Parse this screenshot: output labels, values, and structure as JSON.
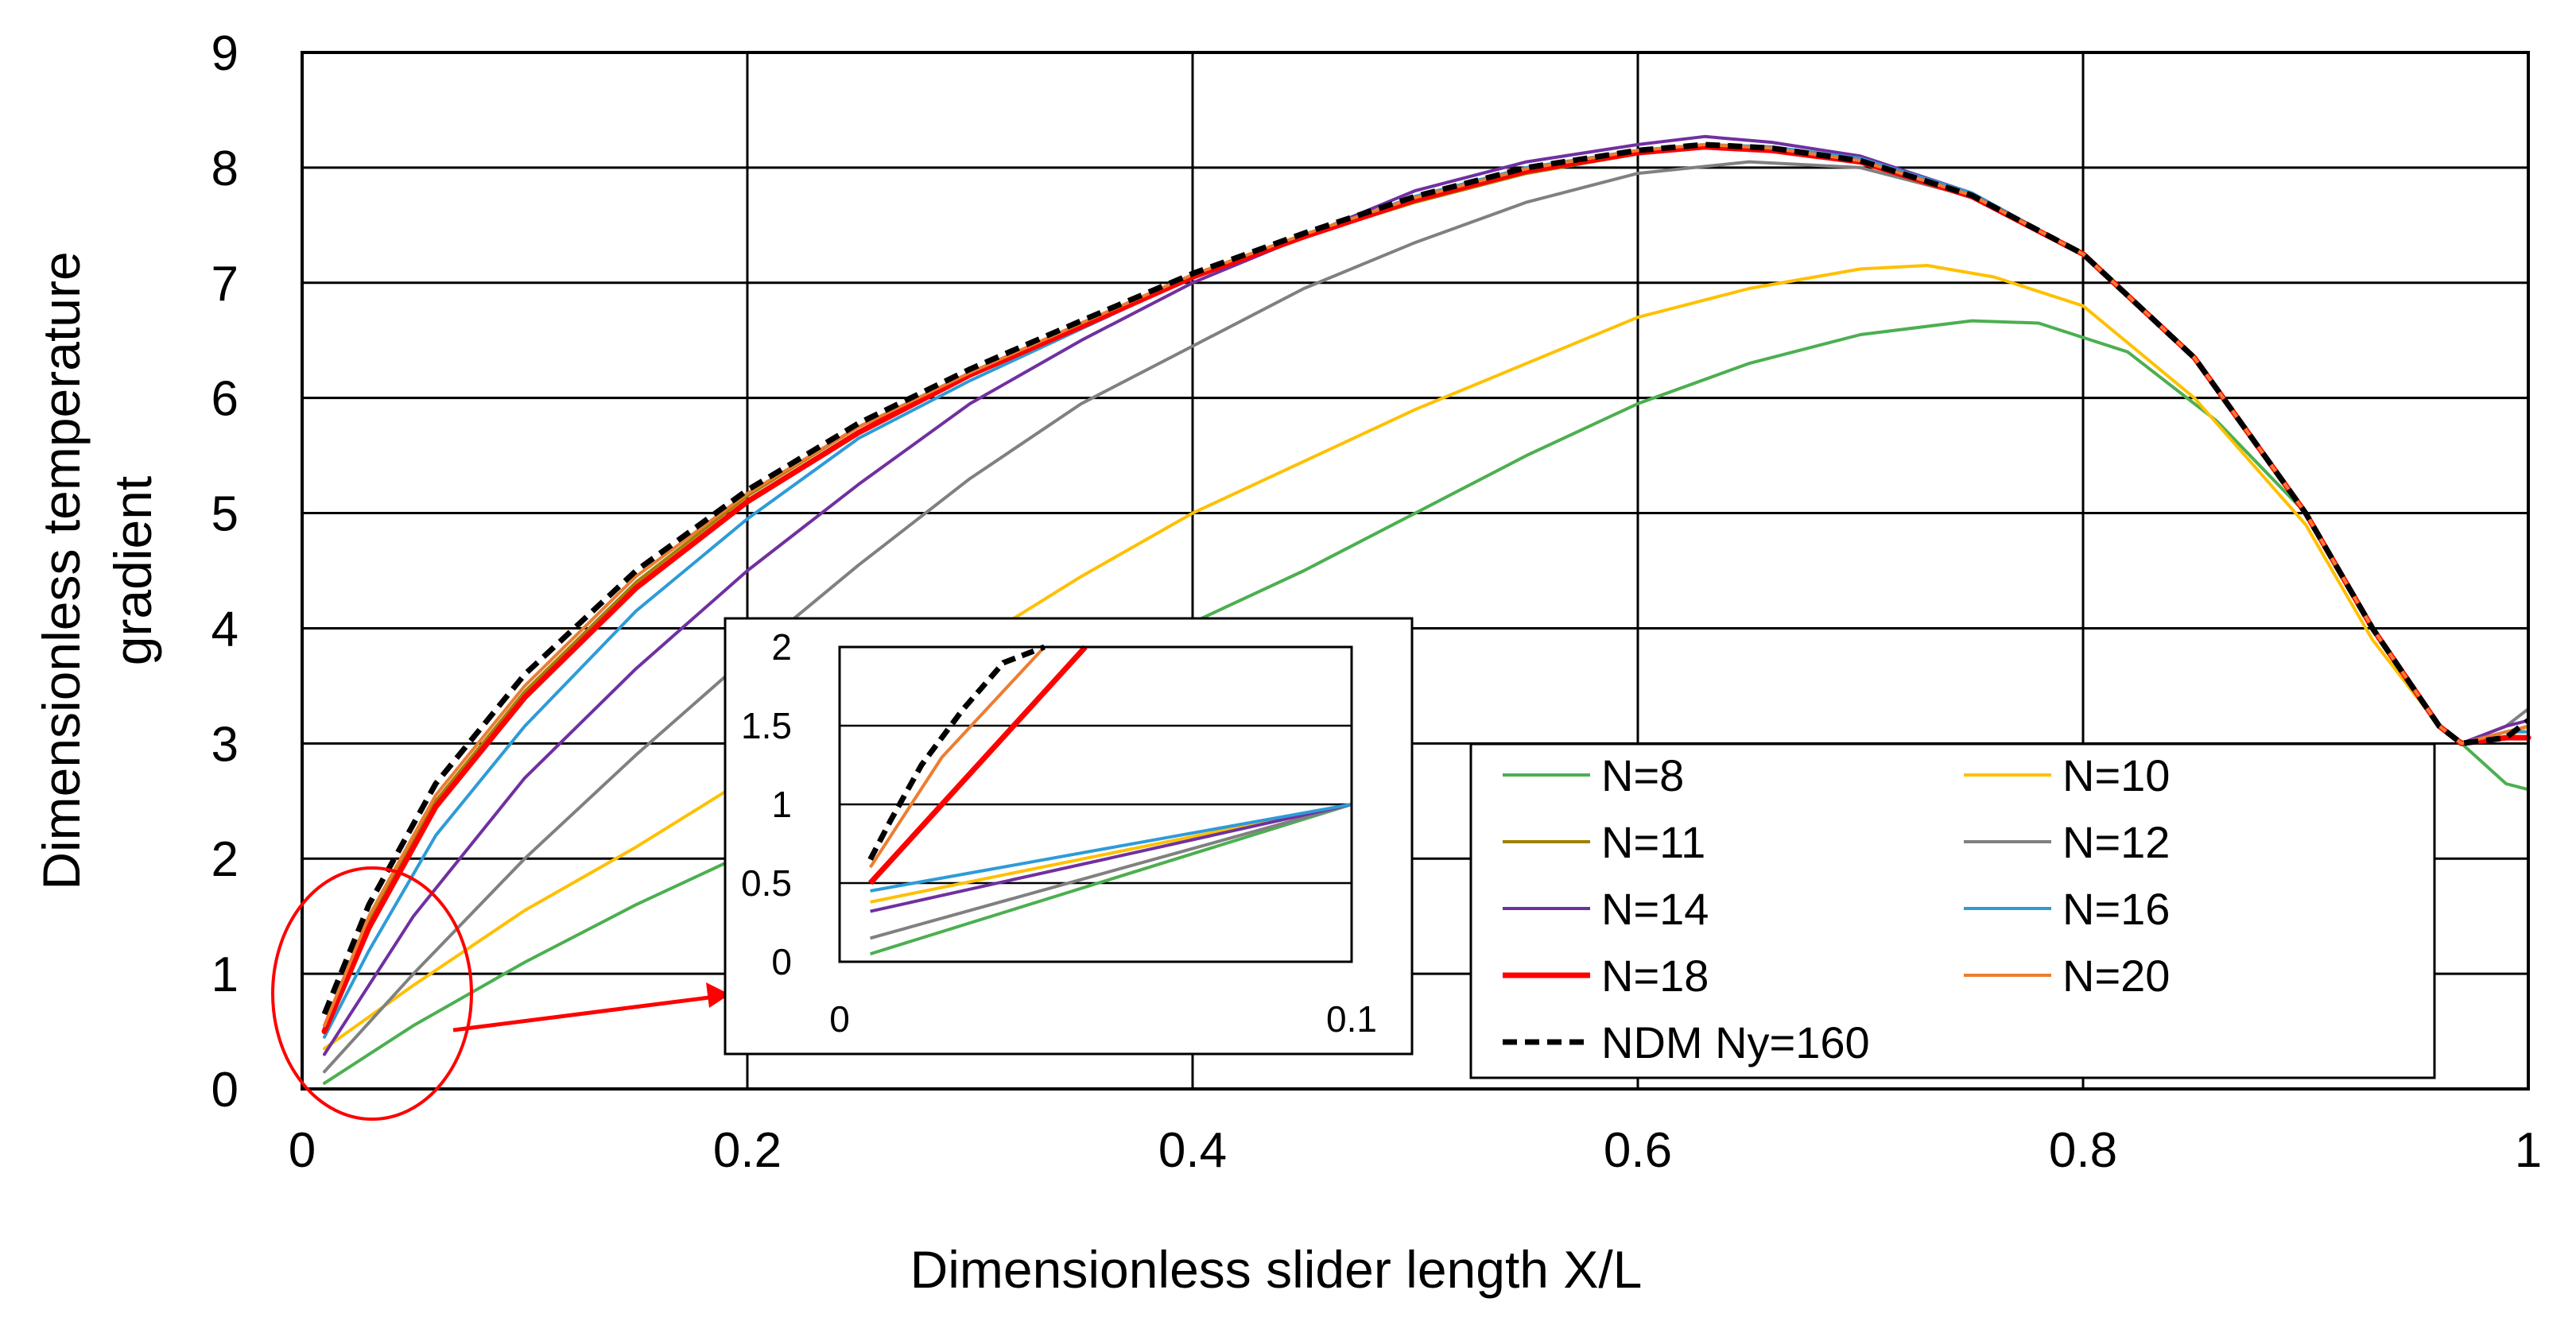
{
  "chart_data": {
    "type": "line",
    "xlabel": "Dimensionless slider length X/L",
    "ylabel_lines": [
      "Dimensionless temperature",
      "gradient"
    ],
    "xlim": [
      0,
      1
    ],
    "ylim": [
      0,
      9
    ],
    "xticks": [
      "0",
      "0.2",
      "0.4",
      "0.6",
      "0.8",
      "1"
    ],
    "yticks": [
      "0",
      "1",
      "2",
      "3",
      "4",
      "5",
      "6",
      "7",
      "8",
      "9"
    ],
    "grid": true,
    "legend_position": "lower-right",
    "series": [
      {
        "name": "N=8",
        "color": "#4CAF50",
        "width": 4,
        "dash": false,
        "x": [
          0.01,
          0.05,
          0.1,
          0.15,
          0.2,
          0.25,
          0.3,
          0.35,
          0.4,
          0.45,
          0.5,
          0.55,
          0.6,
          0.65,
          0.7,
          0.75,
          0.78,
          0.82,
          0.86,
          0.9,
          0.93,
          0.96,
          0.97,
          0.99,
          1.0
        ],
        "y": [
          0.05,
          0.55,
          1.1,
          1.6,
          2.05,
          2.5,
          3.0,
          3.55,
          4.05,
          4.5,
          5.0,
          5.5,
          5.95,
          6.3,
          6.55,
          6.67,
          6.65,
          6.4,
          5.8,
          5.0,
          4.0,
          3.15,
          3.0,
          2.65,
          2.6
        ]
      },
      {
        "name": "N=10",
        "color": "#FFC000",
        "width": 4,
        "dash": false,
        "x": [
          0.01,
          0.05,
          0.1,
          0.15,
          0.2,
          0.25,
          0.3,
          0.35,
          0.4,
          0.45,
          0.5,
          0.55,
          0.6,
          0.65,
          0.7,
          0.73,
          0.76,
          0.8,
          0.85,
          0.9,
          0.93,
          0.96,
          0.97,
          0.99,
          1.0
        ],
        "y": [
          0.35,
          0.9,
          1.55,
          2.1,
          2.7,
          3.3,
          3.85,
          4.45,
          5.0,
          5.45,
          5.9,
          6.3,
          6.7,
          6.95,
          7.12,
          7.15,
          7.05,
          6.8,
          6.0,
          4.9,
          3.9,
          3.15,
          3.0,
          3.05,
          3.15
        ]
      },
      {
        "name": "N=11",
        "color": "#A08000",
        "width": 4,
        "dash": false,
        "x": [
          0.01,
          0.03,
          0.06,
          0.1,
          0.15,
          0.2,
          0.25,
          0.3,
          0.35,
          0.4,
          0.45,
          0.5,
          0.55,
          0.6,
          0.63,
          0.66,
          0.7,
          0.75,
          0.8,
          0.85,
          0.9,
          0.93,
          0.96,
          0.97,
          0.99,
          1.0
        ],
        "y": [
          0.55,
          1.45,
          2.5,
          3.45,
          4.4,
          5.15,
          5.75,
          6.2,
          6.65,
          7.05,
          7.4,
          7.7,
          7.95,
          8.12,
          8.18,
          8.15,
          8.05,
          7.75,
          7.25,
          6.35,
          5.0,
          4.0,
          3.15,
          3.0,
          3.1,
          3.15
        ]
      },
      {
        "name": "N=12",
        "color": "#808080",
        "width": 4,
        "dash": false,
        "x": [
          0.01,
          0.05,
          0.1,
          0.15,
          0.2,
          0.25,
          0.3,
          0.35,
          0.4,
          0.45,
          0.5,
          0.55,
          0.6,
          0.65,
          0.7,
          0.75,
          0.8,
          0.85,
          0.9,
          0.93,
          0.96,
          0.97,
          0.99,
          1.0
        ],
        "y": [
          0.15,
          1.0,
          2.0,
          2.9,
          3.75,
          4.55,
          5.3,
          5.95,
          6.45,
          6.95,
          7.35,
          7.7,
          7.95,
          8.05,
          8.0,
          7.75,
          7.25,
          6.35,
          5.0,
          4.0,
          3.15,
          3.0,
          3.15,
          3.3
        ]
      },
      {
        "name": "N=14",
        "color": "#7030A0",
        "width": 4,
        "dash": false,
        "x": [
          0.01,
          0.05,
          0.1,
          0.15,
          0.2,
          0.25,
          0.3,
          0.35,
          0.4,
          0.45,
          0.5,
          0.55,
          0.6,
          0.63,
          0.66,
          0.7,
          0.75,
          0.8,
          0.85,
          0.9,
          0.93,
          0.96,
          0.97,
          0.99,
          1.0
        ],
        "y": [
          0.3,
          1.5,
          2.7,
          3.65,
          4.5,
          5.25,
          5.95,
          6.5,
          7.0,
          7.4,
          7.8,
          8.05,
          8.2,
          8.27,
          8.22,
          8.1,
          7.78,
          7.25,
          6.35,
          5.0,
          4.0,
          3.15,
          3.0,
          3.15,
          3.2
        ]
      },
      {
        "name": "N=16",
        "color": "#2E9BD8",
        "width": 4,
        "dash": false,
        "x": [
          0.01,
          0.03,
          0.06,
          0.1,
          0.15,
          0.2,
          0.25,
          0.3,
          0.35,
          0.4,
          0.45,
          0.5,
          0.55,
          0.6,
          0.63,
          0.66,
          0.7,
          0.75,
          0.8,
          0.85,
          0.9,
          0.93,
          0.96,
          0.97,
          0.99,
          1.0
        ],
        "y": [
          0.45,
          1.2,
          2.2,
          3.15,
          4.15,
          4.95,
          5.65,
          6.15,
          6.6,
          7.05,
          7.4,
          7.75,
          8.0,
          8.15,
          8.2,
          8.18,
          8.08,
          7.78,
          7.25,
          6.35,
          5.0,
          4.0,
          3.15,
          3.0,
          3.1,
          3.1
        ]
      },
      {
        "name": "N=18",
        "color": "#FF0000",
        "width": 7,
        "dash": false,
        "x": [
          0.01,
          0.03,
          0.06,
          0.1,
          0.15,
          0.2,
          0.25,
          0.3,
          0.35,
          0.4,
          0.45,
          0.5,
          0.55,
          0.6,
          0.63,
          0.66,
          0.7,
          0.75,
          0.8,
          0.85,
          0.9,
          0.93,
          0.96,
          0.97,
          0.99,
          1.0
        ],
        "y": [
          0.5,
          1.4,
          2.45,
          3.4,
          4.35,
          5.1,
          5.7,
          6.2,
          6.62,
          7.05,
          7.4,
          7.72,
          7.97,
          8.13,
          8.18,
          8.15,
          8.05,
          7.75,
          7.25,
          6.35,
          5.0,
          4.0,
          3.15,
          3.0,
          3.05,
          3.05
        ]
      },
      {
        "name": "N=20",
        "color": "#ED7D31",
        "width": 4,
        "dash": false,
        "x": [
          0.01,
          0.03,
          0.06,
          0.1,
          0.15,
          0.2,
          0.25,
          0.3,
          0.35,
          0.4,
          0.45,
          0.5,
          0.55,
          0.6,
          0.63,
          0.66,
          0.7,
          0.75,
          0.8,
          0.85,
          0.9,
          0.93,
          0.96,
          0.97,
          0.99,
          1.0
        ],
        "y": [
          0.55,
          1.5,
          2.55,
          3.5,
          4.45,
          5.17,
          5.75,
          6.22,
          6.65,
          7.07,
          7.42,
          7.74,
          7.99,
          8.15,
          8.2,
          8.17,
          8.06,
          7.76,
          7.25,
          6.35,
          5.0,
          4.0,
          3.15,
          3.0,
          3.1,
          3.15
        ]
      },
      {
        "name": "NDM Ny=160",
        "color": "#000000",
        "width": 7,
        "dash": true,
        "x": [
          0.01,
          0.03,
          0.06,
          0.1,
          0.15,
          0.2,
          0.25,
          0.3,
          0.35,
          0.4,
          0.45,
          0.5,
          0.55,
          0.6,
          0.63,
          0.66,
          0.7,
          0.75,
          0.8,
          0.85,
          0.9,
          0.93,
          0.96,
          0.97,
          0.99,
          1.0
        ],
        "y": [
          0.65,
          1.6,
          2.65,
          3.6,
          4.5,
          5.2,
          5.78,
          6.25,
          6.67,
          7.08,
          7.43,
          7.75,
          8.0,
          8.15,
          8.2,
          8.17,
          8.06,
          7.76,
          7.25,
          6.35,
          5.0,
          4.0,
          3.15,
          3.0,
          3.05,
          3.2
        ]
      }
    ],
    "inset": {
      "xlim": [
        0,
        0.1
      ],
      "ylim": [
        0,
        2
      ],
      "xticks": [
        "0",
        "0.1"
      ],
      "yticks": [
        "0",
        "0.5",
        "1",
        "1.5",
        "2"
      ],
      "series": [
        {
          "name": "N=8",
          "x": [
            0.006,
            0.1
          ],
          "y": [
            0.05,
            1.0
          ]
        },
        {
          "name": "N=10",
          "x": [
            0.006,
            0.1
          ],
          "y": [
            0.38,
            1.0
          ]
        },
        {
          "name": "N=12",
          "x": [
            0.006,
            0.1
          ],
          "y": [
            0.15,
            1.0
          ]
        },
        {
          "name": "N=14",
          "x": [
            0.006,
            0.1
          ],
          "y": [
            0.32,
            1.0
          ]
        },
        {
          "name": "N=16",
          "x": [
            0.006,
            0.1
          ],
          "y": [
            0.45,
            1.0
          ]
        },
        {
          "name": "N=18",
          "x": [
            0.006,
            0.02,
            0.034,
            0.048
          ],
          "y": [
            0.5,
            1.0,
            1.5,
            2.0
          ]
        },
        {
          "name": "N=20",
          "x": [
            0.006,
            0.02,
            0.04
          ],
          "y": [
            0.6,
            1.3,
            2.0
          ]
        },
        {
          "name": "NDM Ny=160",
          "x": [
            0.006,
            0.01,
            0.016,
            0.024,
            0.032,
            0.04
          ],
          "y": [
            0.65,
            0.9,
            1.25,
            1.6,
            1.9,
            2.0
          ]
        }
      ]
    }
  }
}
